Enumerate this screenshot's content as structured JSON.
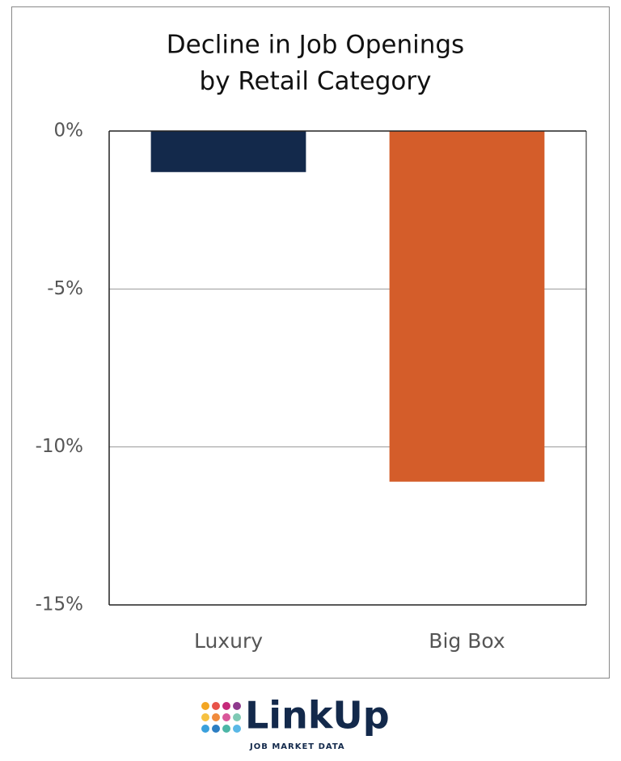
{
  "chart_data": {
    "type": "bar",
    "title": [
      "Decline in Job Openings",
      "by Retail Category"
    ],
    "categories": [
      "Luxury",
      "Big Box"
    ],
    "values": [
      -1.3,
      -11.1
    ],
    "colors": [
      "#13294b",
      "#d45d2a"
    ],
    "ylim": [
      -15,
      0
    ],
    "yticks": [
      {
        "value": 0,
        "label": "0%"
      },
      {
        "value": -5,
        "label": "-5%"
      },
      {
        "value": -10,
        "label": "-10%"
      },
      {
        "value": -15,
        "label": "-15%"
      }
    ],
    "grid": true
  },
  "logo": {
    "name": "LinkUp",
    "tagline": "JOB MARKET DATA"
  }
}
